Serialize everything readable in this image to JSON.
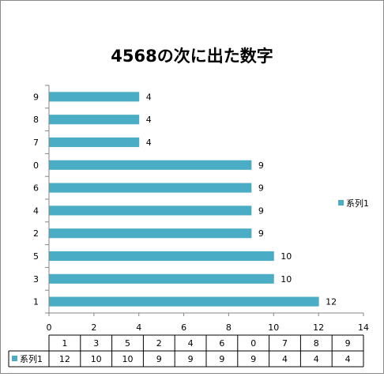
{
  "chart_data": {
    "type": "bar",
    "orientation": "horizontal",
    "title": "4568の次に出た数字",
    "categories": [
      "1",
      "3",
      "5",
      "2",
      "4",
      "6",
      "0",
      "7",
      "8",
      "9"
    ],
    "series": [
      {
        "name": "系列1",
        "values": [
          12,
          10,
          10,
          9,
          9,
          9,
          9,
          4,
          4,
          4
        ]
      }
    ],
    "xlim": [
      0,
      14
    ],
    "xticks": [
      0,
      2,
      4,
      6,
      8,
      10,
      12,
      14
    ],
    "grid": false,
    "legend": "right",
    "data_table": true,
    "bar_color": "#4BACC6"
  }
}
